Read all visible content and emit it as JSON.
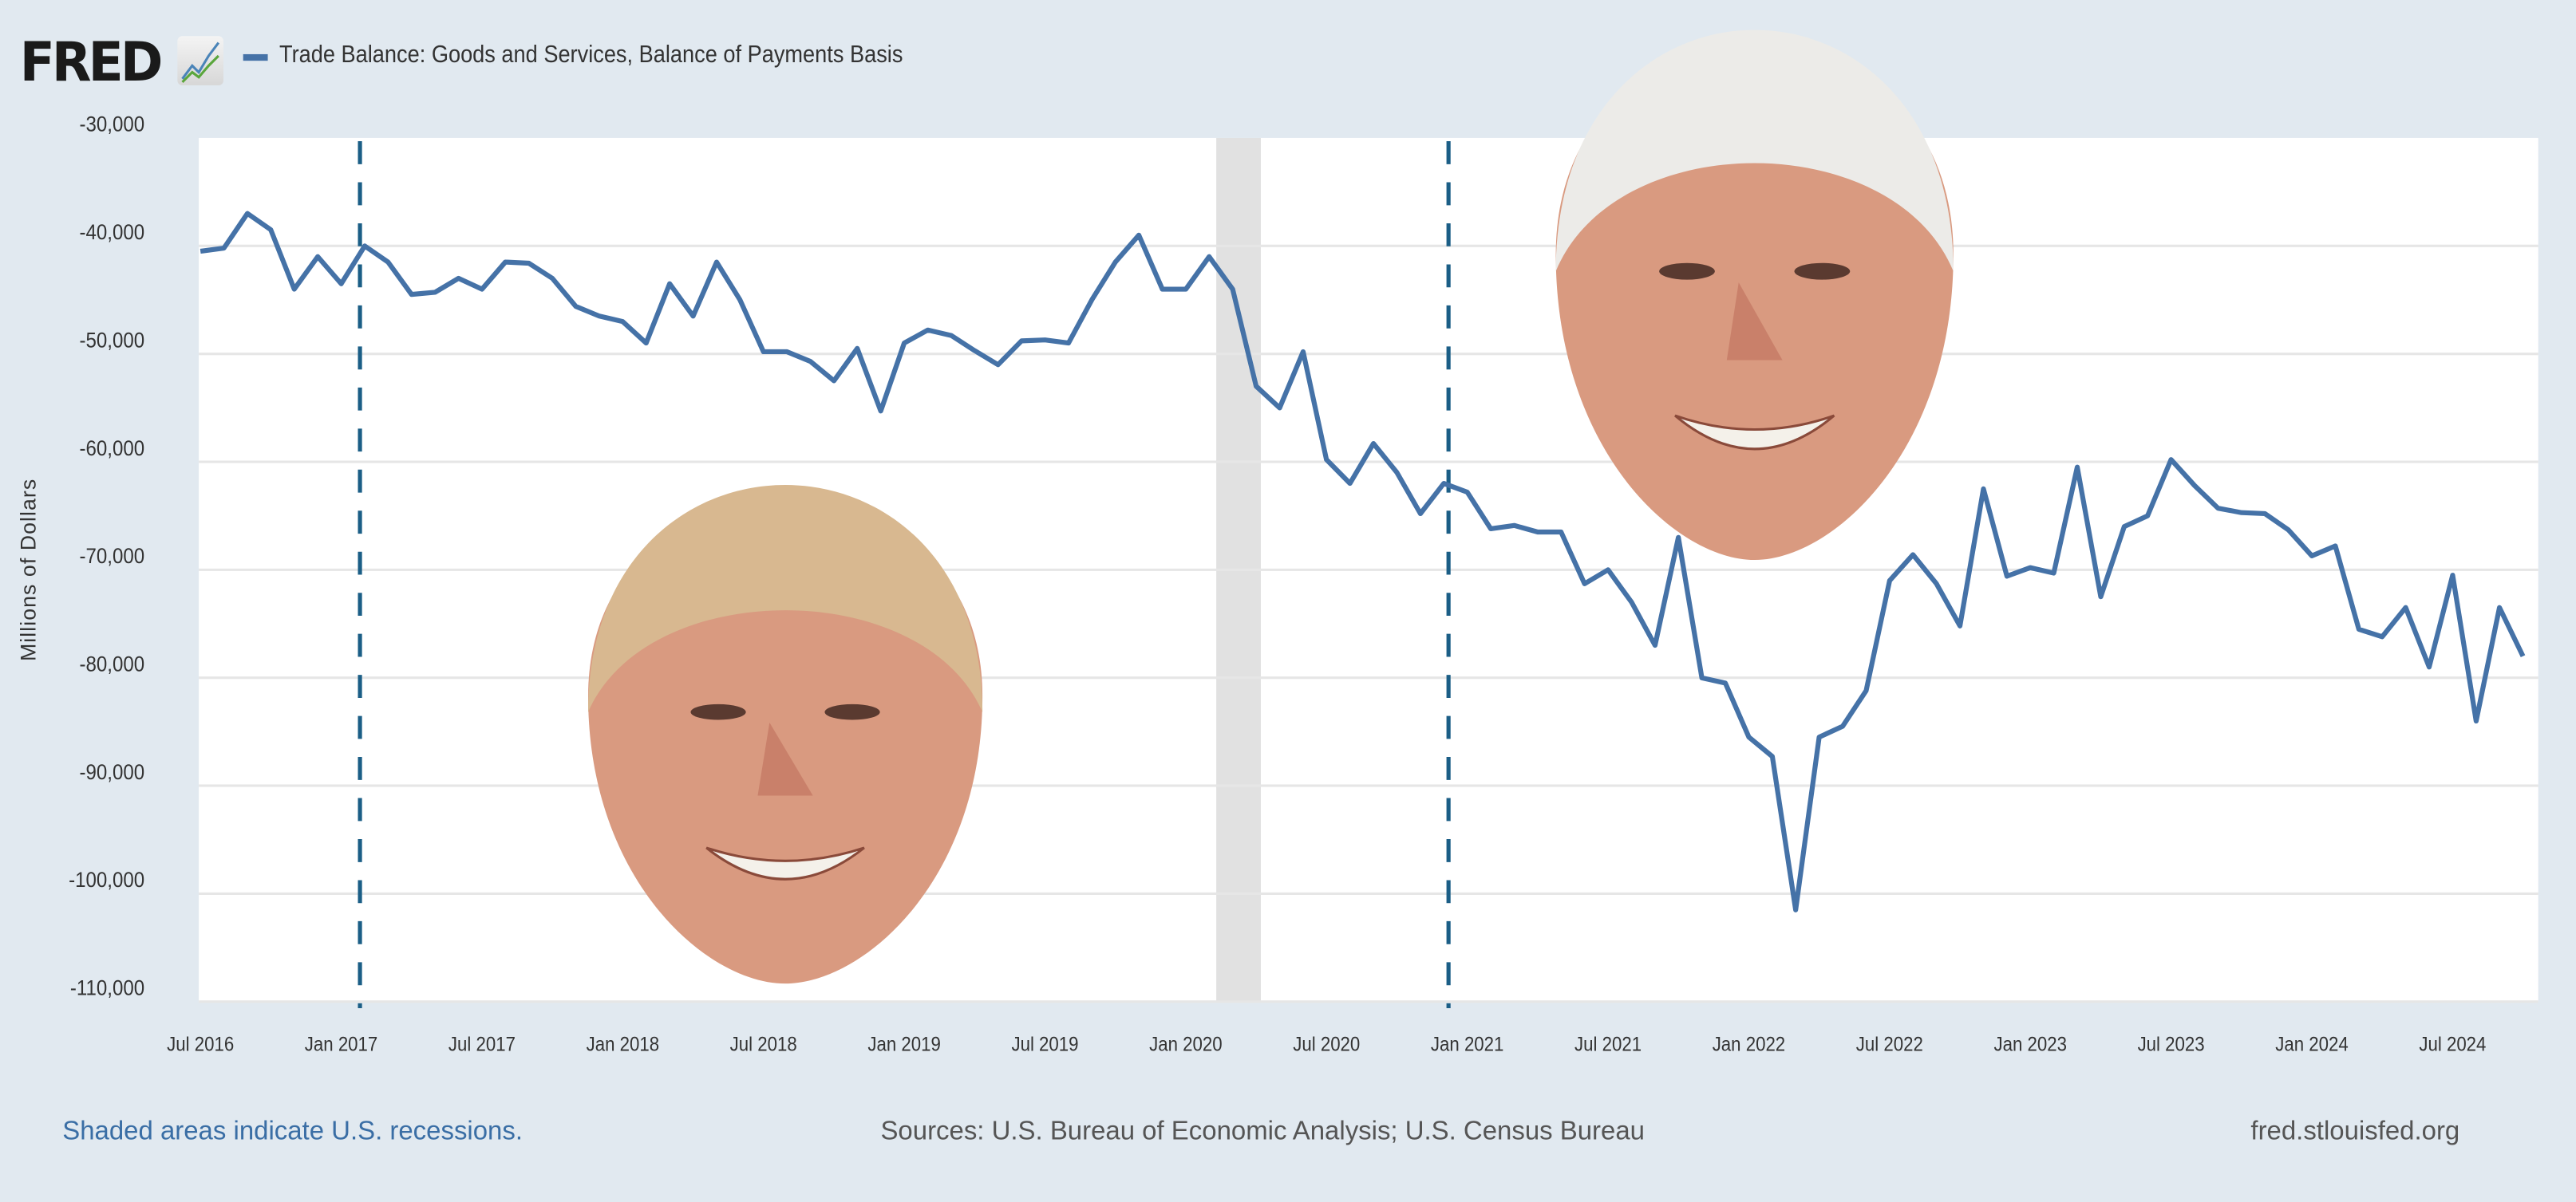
{
  "header": {
    "logo_text": "FRED",
    "series_title": "Trade Balance: Goods and Services, Balance of Payments Basis"
  },
  "footer": {
    "recession_note": "Shaded areas indicate U.S. recessions.",
    "sources": "Sources: U.S. Bureau of Economic Analysis; U.S. Census Bureau",
    "site": "fred.stlouisfed.org"
  },
  "colors": {
    "line": "#4572a7",
    "background": "#e1e9f0",
    "recession": "#e1e1e1",
    "marker": "#1b5e86",
    "grid": "#e6e6e6"
  },
  "chart_data": {
    "type": "line",
    "title": "Trade Balance: Goods and Services, Balance of Payments Basis",
    "xlabel": "",
    "ylabel": "Millions of Dollars",
    "ylim": [
      -110000,
      -30000
    ],
    "yticks": [
      -30000,
      -40000,
      -50000,
      -60000,
      -70000,
      -80000,
      -90000,
      -100000,
      -110000
    ],
    "ytick_labels": [
      "-30,000",
      "-40,000",
      "-50,000",
      "-60,000",
      "-70,000",
      "-80,000",
      "-90,000",
      "-100,000",
      "-110,000"
    ],
    "x_start": "2016-07",
    "x_frequency": "monthly",
    "xtick_labels": [
      "Jul 2016",
      "Jan 2017",
      "Jul 2017",
      "Jan 2018",
      "Jul 2018",
      "Jan 2019",
      "Jul 2019",
      "Jan 2020",
      "Jul 2020",
      "Jan 2021",
      "Jul 2021",
      "Jan 2022",
      "Jul 2022",
      "Jan 2023",
      "Jul 2023",
      "Jan 2024",
      "Jul 2024"
    ],
    "xtick_month_index": [
      0,
      6,
      12,
      18,
      24,
      30,
      36,
      42,
      48,
      54,
      60,
      66,
      72,
      78,
      84,
      90,
      96
    ],
    "grid": true,
    "legend": "top-left",
    "series": [
      {
        "name": "Trade Balance: Goods and Services, Balance of Payments Basis",
        "values": [
          -40500,
          -40200,
          -37000,
          -38500,
          -44000,
          -41000,
          -43500,
          -40000,
          -41500,
          -44500,
          -44300,
          -43000,
          -44000,
          -41500,
          -41600,
          -43000,
          -45600,
          -46500,
          -47000,
          -49000,
          -43500,
          -46500,
          -41500,
          -45000,
          -49800,
          -49800,
          -50700,
          -52500,
          -49500,
          -55300,
          -49000,
          -47800,
          -48300,
          -49700,
          -51000,
          -48800,
          -48700,
          -49000,
          -45000,
          -41500,
          -39000,
          -44000,
          -44000,
          -41000,
          -44000,
          -53000,
          -55000,
          -49800,
          -59800,
          -62000,
          -58300,
          -61000,
          -64800,
          -62000,
          -62800,
          -66200,
          -65900,
          -66500,
          -66500,
          -71300,
          -70000,
          -73000,
          -77000,
          -67000,
          -80000,
          -80500,
          -85500,
          -87300,
          -101500,
          -85500,
          -84500,
          -81200,
          -71000,
          -68600,
          -71300,
          -75200,
          -62500,
          -70600,
          -69800,
          -70300,
          -60500,
          -72500,
          -66000,
          -65000,
          -59800,
          -62200,
          -64300,
          -64700,
          -64800,
          -66300,
          -68700,
          -67800,
          -75500,
          -76200,
          -73500,
          -79000,
          -70500,
          -84000,
          -73500,
          -78000
        ]
      }
    ],
    "recession_shading": [
      {
        "start_month_index": 43.3,
        "end_month_index": 45.2
      }
    ],
    "vertical_markers": [
      {
        "month_index": 6.8,
        "style": "dashed"
      },
      {
        "month_index": 53.2,
        "style": "dashed"
      }
    ],
    "annotations_images": [
      "trump-face",
      "biden-face"
    ]
  }
}
